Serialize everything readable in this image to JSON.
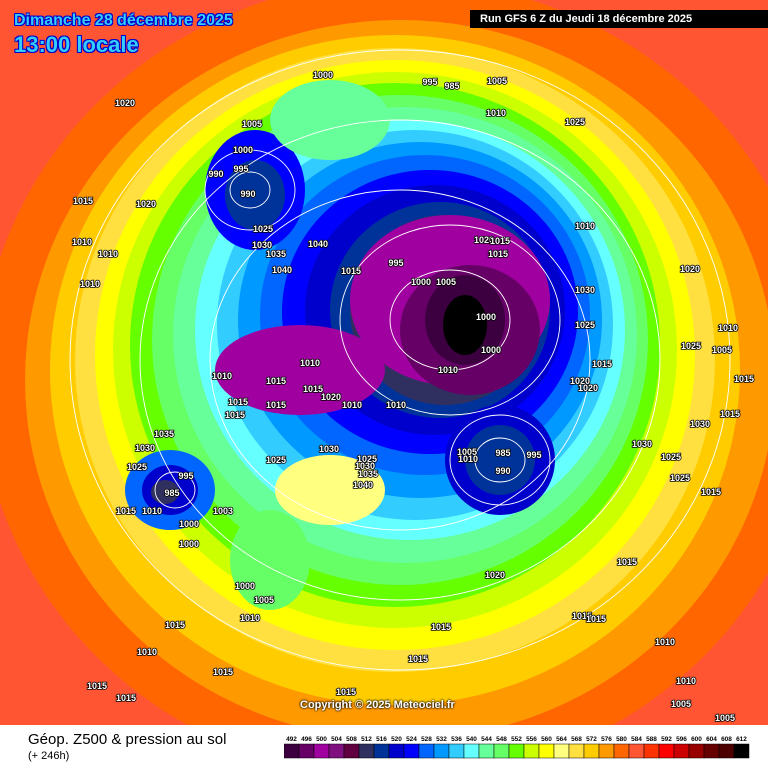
{
  "header": {
    "date": "Dimanche 28 décembre 2025",
    "local_time": "13:00 locale",
    "run": "Run GFS 6 Z du Jeudi 18 décembre 2025"
  },
  "copyright": "Copyright © 2025 Meteociel.fr",
  "footer": {
    "title": "Géop. Z500 & pression au sol",
    "subtitle": "(+ 246h)"
  },
  "legend": {
    "values": [
      "492",
      "496",
      "500",
      "504",
      "508",
      "512",
      "516",
      "520",
      "524",
      "528",
      "532",
      "536",
      "540",
      "544",
      "548",
      "552",
      "556",
      "560",
      "564",
      "568",
      "572",
      "576",
      "580",
      "584",
      "588",
      "592",
      "596",
      "600",
      "604",
      "608",
      "612"
    ],
    "colors": [
      "#3c0040",
      "#660066",
      "#a000a0",
      "#801080",
      "#600040",
      "#303060",
      "#003399",
      "#0000cc",
      "#0000ff",
      "#0066ff",
      "#0099ff",
      "#33ccff",
      "#66ffff",
      "#66ff99",
      "#66ff66",
      "#66ff00",
      "#ccff00",
      "#ffff00",
      "#ffff80",
      "#ffe040",
      "#ffcc00",
      "#ff9900",
      "#ff6600",
      "#ff5533",
      "#ff3300",
      "#ff0000",
      "#cc0000",
      "#990000",
      "#660000",
      "#4d0000",
      "#000000"
    ]
  },
  "pressure_labels": [
    "1000",
    "995",
    "985",
    "1005",
    "1020",
    "1005",
    "1010",
    "1025",
    "1000",
    "995",
    "990",
    "990",
    "1015",
    "1020",
    "1025",
    "1010",
    "1010",
    "1030",
    "1040",
    "1020",
    "1015",
    "1010",
    "1035",
    "1015",
    "995",
    "1015",
    "1040",
    "1020",
    "1010",
    "1000",
    "1005",
    "1030",
    "1000",
    "1010",
    "1025",
    "1025",
    "1000",
    "1005",
    "1010",
    "1015",
    "1010",
    "1015",
    "1010",
    "1015",
    "1020",
    "1020",
    "1015",
    "1020",
    "1015",
    "1015",
    "1010",
    "1010",
    "1015",
    "1015",
    "1030",
    "1035",
    "1030",
    "1030",
    "1030",
    "1005",
    "985",
    "995",
    "1025",
    "1010",
    "1025",
    "1025",
    "1030",
    "1035",
    "1040",
    "990",
    "1025",
    "995",
    "1025",
    "985",
    "1015",
    "1015",
    "1010",
    "1000",
    "1003",
    "1000",
    "1020",
    "1015",
    "1000",
    "1005",
    "1010",
    "1015",
    "1015",
    "1015",
    "1015",
    "1010",
    "1010",
    "1015",
    "1015",
    "1010",
    "1015",
    "1015",
    "1015",
    "1005",
    "1005"
  ]
}
